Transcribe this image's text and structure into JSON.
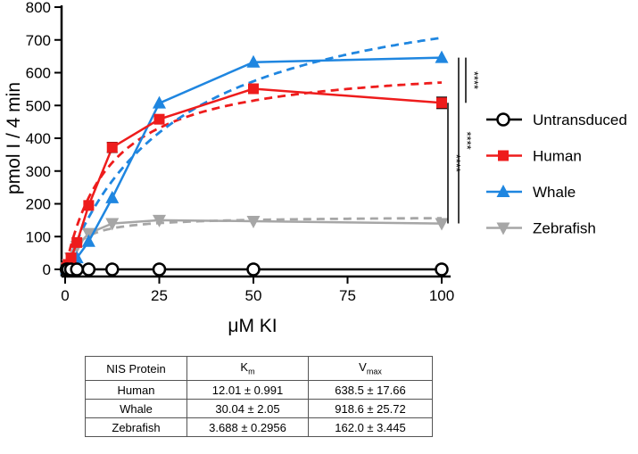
{
  "chart_data": {
    "type": "line",
    "xlabel": "μM KI",
    "ylabel": "pmol I / 4 min",
    "xlim": [
      0,
      100
    ],
    "ylim": [
      0,
      800
    ],
    "xticks": [
      0,
      25,
      50,
      75,
      100
    ],
    "yticks": [
      0,
      100,
      200,
      300,
      400,
      500,
      600,
      700,
      800
    ],
    "grid": false,
    "legend_position": "right",
    "series": [
      {
        "name": "Untransduced",
        "color": "#000000",
        "marker": "circle-open",
        "x": [
          0.39,
          0.78,
          1.56,
          3.125,
          6.25,
          12.5,
          25,
          50,
          100
        ],
        "y": [
          0,
          0,
          0,
          0,
          0,
          0,
          0,
          0,
          0
        ]
      },
      {
        "name": "Human",
        "color": "#ee1c1c",
        "marker": "square",
        "x": [
          0.39,
          0.78,
          1.56,
          3.125,
          6.25,
          12.5,
          25,
          50,
          100
        ],
        "y": [
          5,
          15,
          35,
          82,
          195,
          372,
          458,
          551,
          508
        ],
        "err": [
          0,
          0,
          0,
          0,
          0,
          15,
          0,
          0,
          17
        ]
      },
      {
        "name": "Whale",
        "color": "#1f86e0",
        "marker": "triangle-up",
        "x": [
          0.39,
          0.78,
          1.56,
          3.125,
          6.25,
          12.5,
          25,
          50,
          100
        ],
        "y": [
          2,
          5,
          15,
          35,
          85,
          218,
          507,
          632,
          646
        ]
      },
      {
        "name": "Zebrafish",
        "color": "#a6a6a6",
        "marker": "triangle-down",
        "x": [
          0.39,
          0.78,
          1.56,
          3.125,
          6.25,
          12.5,
          25,
          50,
          100
        ],
        "y": [
          5,
          15,
          35,
          70,
          110,
          140,
          150,
          147,
          140
        ]
      }
    ],
    "fits": [
      {
        "series": "Human",
        "model": "michaelis-menten",
        "Km": 12.01,
        "Vmax": 638.5
      },
      {
        "series": "Whale",
        "model": "michaelis-menten",
        "Km": 30.04,
        "Vmax": 918.6
      },
      {
        "series": "Zebrafish",
        "model": "michaelis-menten",
        "Km": 3.688,
        "Vmax": 162.0
      }
    ],
    "significance": [
      {
        "label": "****",
        "range": [
          508,
          646
        ]
      },
      {
        "label": "****",
        "range": [
          140,
          508
        ]
      },
      {
        "label": "****",
        "range": [
          140,
          646
        ]
      }
    ]
  },
  "table": {
    "headers": [
      "NIS Protein",
      "K",
      "V"
    ],
    "header_subscripts": [
      "",
      "m",
      "max"
    ],
    "rows": [
      [
        "Human",
        "12.01 ± 0.991",
        "638.5 ± 17.66"
      ],
      [
        "Whale",
        "30.04 ± 2.05",
        "918.6 ± 25.72"
      ],
      [
        "Zebrafish",
        "3.688 ± 0.2956",
        "162.0 ± 3.445"
      ]
    ]
  }
}
